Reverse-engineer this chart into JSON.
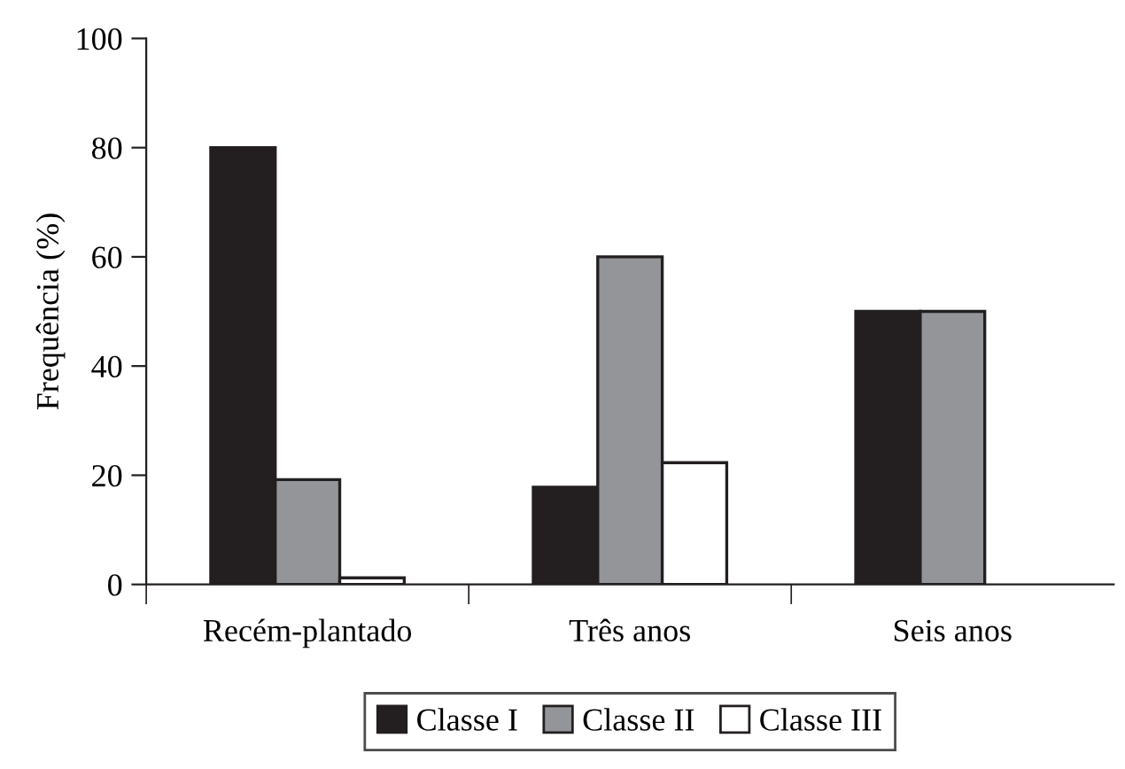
{
  "chart_data": {
    "type": "bar",
    "ylabel": "Frequência (%)",
    "categories": [
      "Recém-plantado",
      "Três anos",
      "Seis anos"
    ],
    "series": [
      {
        "name": "Classe I",
        "color": "#231f20",
        "values": [
          80,
          17.8,
          50
        ]
      },
      {
        "name": "Classe II",
        "color": "#939598",
        "values": [
          19.2,
          60,
          50
        ]
      },
      {
        "name": "Classe III",
        "color": "#ffffff",
        "values": [
          1.2,
          22.3,
          null
        ]
      }
    ],
    "ylim": [
      0,
      100
    ],
    "yticks": [
      0,
      20,
      40,
      60,
      80,
      100
    ],
    "grid": false,
    "legend": "bottom"
  }
}
